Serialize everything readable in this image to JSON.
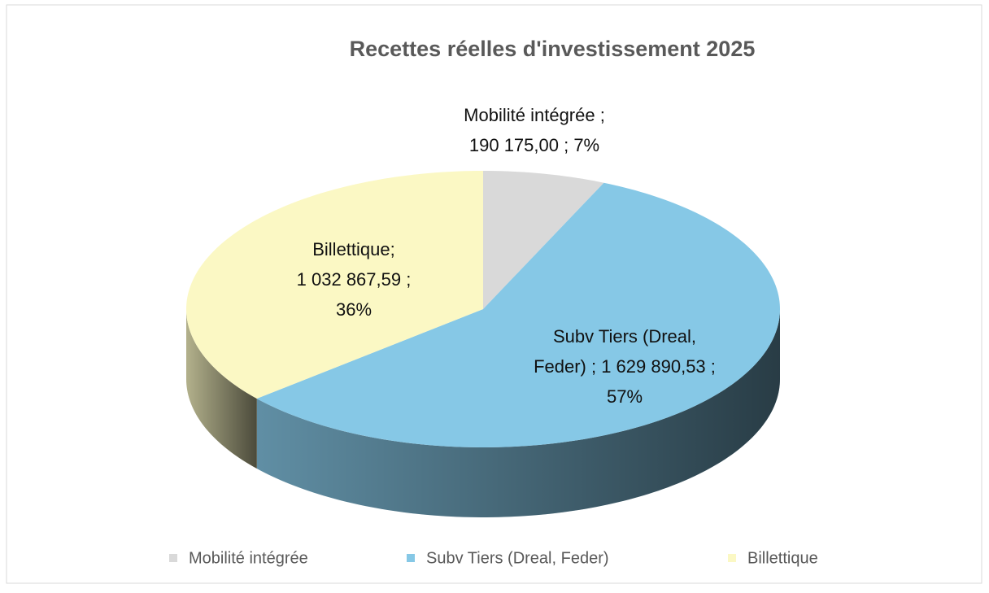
{
  "chart_data": {
    "type": "pie3d",
    "title": "Recettes réelles d'investissement 2025",
    "categories": [
      "Mobilité intégrée",
      "Subv Tiers (Dreal, Feder)",
      "Billettique"
    ],
    "values": [
      190175.0,
      1629890.53,
      1032867.59
    ],
    "percentages": [
      7,
      57,
      36
    ],
    "data_labels": [
      [
        "Mobilité intégrée ;",
        "190 175,00 ; 7%"
      ],
      [
        "Subv Tiers (Dreal,",
        "Feder) ;  1 629 890,53 ;",
        "57%"
      ],
      [
        "Billettique;",
        "1 032 867,59 ;",
        "36%"
      ]
    ],
    "colors": [
      "#d9d9d9",
      "#86c8e6",
      "#fbf8c4"
    ],
    "legend": "bottom"
  }
}
